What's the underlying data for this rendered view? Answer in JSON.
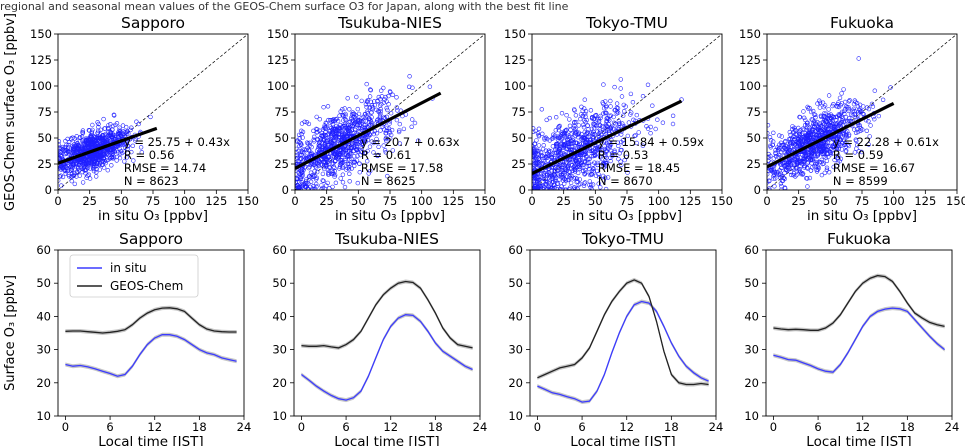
{
  "caption_fragment": "regional and seasonal mean values of the GEOS-Chem surface O3 for Japan, along with the best fit line",
  "colors": {
    "scatter": "#1f1fff",
    "fit": "#000000",
    "insitu": "#3b3bff",
    "geos": "#222222",
    "band": "#b8b8b8"
  },
  "chart_data": [
    {
      "type": "scatter",
      "panel": "top",
      "title": "Sapporo",
      "ylabel": "GEOS-Chem surface O₃ [ppbv]",
      "xlabel": "in situ O₃ [ppbv]",
      "xlim": [
        0,
        150
      ],
      "ylim": [
        0,
        150
      ],
      "ticks": [
        0,
        25,
        50,
        75,
        100,
        125,
        150
      ],
      "cloud": {
        "x_range": [
          0,
          65
        ],
        "center": [
          28,
          38
        ],
        "spread": [
          14,
          9
        ],
        "slope": 0.43,
        "n_drawn": 900
      },
      "fit": {
        "intercept": 25.75,
        "slope": 0.43,
        "x_range": [
          0,
          78
        ]
      },
      "stats": [
        "y = 25.75 + 0.43x",
        "R = 0.56",
        "RMSE = 14.74",
        "N = 8623"
      ]
    },
    {
      "type": "scatter",
      "panel": "top",
      "title": "Tsukuba-NIES",
      "ylabel": "",
      "xlabel": "in situ O₃ [ppbv]",
      "xlim": [
        0,
        150
      ],
      "ylim": [
        0,
        150
      ],
      "ticks": [
        0,
        25,
        50,
        75,
        100,
        125,
        150
      ],
      "cloud": {
        "x_range": [
          0,
          110
        ],
        "center": [
          35,
          42
        ],
        "spread": [
          22,
          16
        ],
        "slope": 0.63,
        "n_drawn": 900
      },
      "fit": {
        "intercept": 20.7,
        "slope": 0.63,
        "x_range": [
          0,
          115
        ]
      },
      "stats": [
        "y = 20.7 + 0.63x",
        "R = 0.61",
        "RMSE = 17.58",
        "N = 8625"
      ]
    },
    {
      "type": "scatter",
      "panel": "top",
      "title": "Tokyo-TMU",
      "ylabel": "",
      "xlabel": "in situ O₃ [ppbv]",
      "xlim": [
        0,
        150
      ],
      "ylim": [
        0,
        150
      ],
      "ticks": [
        0,
        25,
        50,
        75,
        100,
        125,
        150
      ],
      "cloud": {
        "x_range": [
          0,
          120
        ],
        "center": [
          32,
          34
        ],
        "spread": [
          24,
          18
        ],
        "slope": 0.59,
        "n_drawn": 900
      },
      "fit": {
        "intercept": 15.84,
        "slope": 0.59,
        "x_range": [
          0,
          118
        ]
      },
      "stats": [
        "y = 15.84 + 0.59x",
        "R = 0.53",
        "RMSE = 18.45",
        "N = 8670"
      ]
    },
    {
      "type": "scatter",
      "panel": "top",
      "title": "Fukuoka",
      "ylabel": "",
      "xlabel": "in situ O₃ [ppbv]",
      "xlim": [
        0,
        150
      ],
      "ylim": [
        0,
        150
      ],
      "ticks": [
        0,
        25,
        50,
        75,
        100,
        125,
        150
      ],
      "cloud": {
        "x_range": [
          0,
          95
        ],
        "center": [
          38,
          45
        ],
        "spread": [
          18,
          14
        ],
        "slope": 0.61,
        "n_drawn": 900
      },
      "fit": {
        "intercept": 22.28,
        "slope": 0.61,
        "x_range": [
          0,
          100
        ]
      },
      "stats": [
        "y = 22.28 + 0.61x",
        "R = 0.59",
        "RMSE = 16.67",
        "N = 8599"
      ]
    },
    {
      "type": "line",
      "panel": "bottom",
      "title": "Sapporo",
      "ylabel": "Surface O₃ [ppbv]",
      "xlabel": "Local time [JST]",
      "xlim": [
        -1,
        24
      ],
      "ylim": [
        10,
        60
      ],
      "xticks": [
        0,
        6,
        12,
        18,
        24
      ],
      "yticks": [
        10,
        20,
        30,
        40,
        50,
        60
      ],
      "x": [
        0,
        1,
        2,
        3,
        4,
        5,
        6,
        7,
        8,
        9,
        10,
        11,
        12,
        13,
        14,
        15,
        16,
        17,
        18,
        19,
        20,
        21,
        22,
        23
      ],
      "series": [
        {
          "name": "in situ",
          "values": [
            25.5,
            25,
            25.2,
            24.8,
            24.2,
            23.5,
            22.8,
            22,
            22.5,
            25,
            28.5,
            31.5,
            33.5,
            34.5,
            34.5,
            34,
            33,
            31.5,
            30,
            29,
            28.5,
            27.5,
            27,
            26.5
          ]
        },
        {
          "name": "GEOS-Chem",
          "values": [
            35.5,
            35.6,
            35.6,
            35.4,
            35.2,
            35,
            35.2,
            35.5,
            36,
            37.5,
            39.5,
            41,
            42,
            42.5,
            42.6,
            42.3,
            41.5,
            39.5,
            37.5,
            36.2,
            35.6,
            35.4,
            35.3,
            35.3
          ]
        }
      ],
      "legend": "upper-left"
    },
    {
      "type": "line",
      "panel": "bottom",
      "title": "Tsukuba-NIES",
      "ylabel": "",
      "xlabel": "Local time [JST]",
      "xlim": [
        -1,
        24
      ],
      "ylim": [
        10,
        60
      ],
      "xticks": [
        0,
        6,
        12,
        18,
        24
      ],
      "yticks": [
        10,
        20,
        30,
        40,
        50,
        60
      ],
      "x": [
        0,
        1,
        2,
        3,
        4,
        5,
        6,
        7,
        8,
        9,
        10,
        11,
        12,
        13,
        14,
        15,
        16,
        17,
        18,
        19,
        20,
        21,
        22,
        23
      ],
      "series": [
        {
          "name": "in situ",
          "values": [
            22.5,
            20.8,
            19,
            17.5,
            16.2,
            15.2,
            14.8,
            15.5,
            17.5,
            22,
            27.5,
            33,
            37,
            39.5,
            40.5,
            40.3,
            38.5,
            35.5,
            32,
            29.5,
            28,
            26.5,
            25,
            24
          ]
        },
        {
          "name": "GEOS-Chem",
          "values": [
            31.2,
            31,
            31,
            31.2,
            30.8,
            30.5,
            31.5,
            33,
            35.5,
            39.5,
            43.5,
            46.5,
            48.5,
            50,
            50.5,
            50.2,
            48.5,
            45,
            41,
            36.5,
            33.5,
            31.5,
            31,
            30.5
          ]
        }
      ]
    },
    {
      "type": "line",
      "panel": "bottom",
      "title": "Tokyo-TMU",
      "ylabel": "",
      "xlabel": "Local time [JST]",
      "xlim": [
        -1,
        24
      ],
      "ylim": [
        10,
        60
      ],
      "xticks": [
        0,
        6,
        12,
        18,
        24
      ],
      "yticks": [
        10,
        20,
        30,
        40,
        50,
        60
      ],
      "x": [
        0,
        1,
        2,
        3,
        4,
        5,
        6,
        7,
        8,
        9,
        10,
        11,
        12,
        13,
        14,
        15,
        16,
        17,
        18,
        19,
        20,
        21,
        22,
        23
      ],
      "series": [
        {
          "name": "in situ",
          "values": [
            19,
            18,
            17,
            16.5,
            15.8,
            15.2,
            14.2,
            14.5,
            17.5,
            22.5,
            29,
            35,
            40,
            43.5,
            44.5,
            44,
            41.5,
            37,
            32,
            28,
            25,
            23,
            21.5,
            20.5
          ]
        },
        {
          "name": "GEOS-Chem",
          "values": [
            21.5,
            22.5,
            23.5,
            24.5,
            25,
            25.5,
            27.5,
            30.5,
            35.5,
            40.5,
            44.5,
            47.5,
            50,
            51,
            50,
            46,
            38.5,
            29.5,
            22.5,
            20,
            19.5,
            19.5,
            19.8,
            19.5
          ]
        }
      ]
    },
    {
      "type": "line",
      "panel": "bottom",
      "title": "Fukuoka",
      "ylabel": "",
      "xlabel": "Local time [JST]",
      "xlim": [
        -1,
        24
      ],
      "ylim": [
        10,
        60
      ],
      "xticks": [
        0,
        6,
        12,
        18,
        24
      ],
      "yticks": [
        10,
        20,
        30,
        40,
        50,
        60
      ],
      "x": [
        0,
        1,
        2,
        3,
        4,
        5,
        6,
        7,
        8,
        9,
        10,
        11,
        12,
        13,
        14,
        15,
        16,
        17,
        18,
        19,
        20,
        21,
        22,
        23
      ],
      "series": [
        {
          "name": "in situ",
          "values": [
            28.3,
            27.7,
            27,
            26.8,
            26,
            25.2,
            24.2,
            23.5,
            23.2,
            25.5,
            29,
            33,
            37,
            40,
            41.5,
            42.2,
            42.5,
            42.3,
            41.5,
            39,
            36.5,
            34,
            31.8,
            30
          ]
        },
        {
          "name": "GEOS-Chem",
          "values": [
            36.5,
            36.2,
            36,
            36.1,
            36,
            35.8,
            35.8,
            36.5,
            38,
            40.5,
            44,
            47.5,
            50,
            51.5,
            52.3,
            52,
            50.5,
            47.5,
            44,
            41,
            39.5,
            38.2,
            37.5,
            37
          ]
        }
      ]
    }
  ]
}
